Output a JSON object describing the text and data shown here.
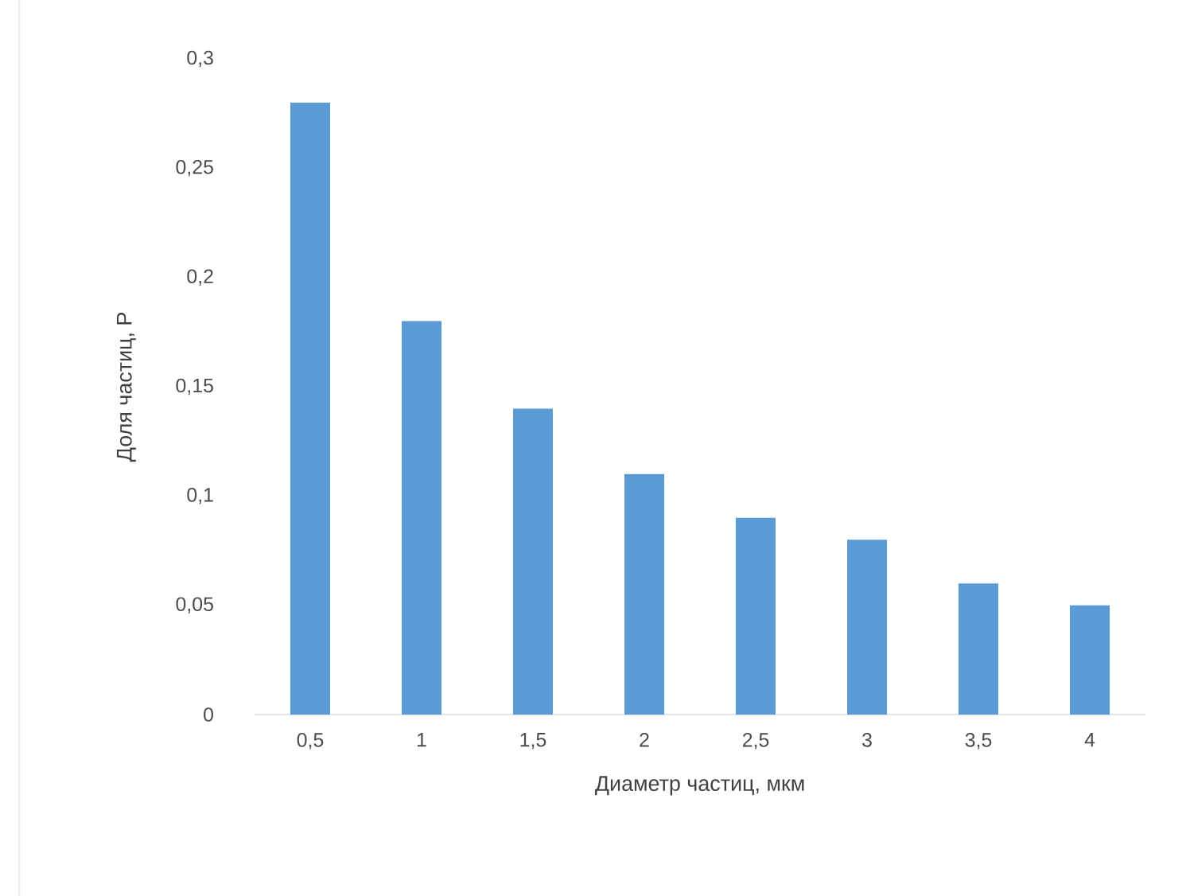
{
  "chart_data": {
    "type": "bar",
    "xlabel": "Диаметр частиц, мкм",
    "ylabel": "Доля частиц, P",
    "categories": [
      "0,5",
      "1",
      "1,5",
      "2",
      "2,5",
      "3",
      "3,5",
      "4"
    ],
    "values": [
      0.28,
      0.18,
      0.14,
      0.11,
      0.09,
      0.08,
      0.06,
      0.05
    ],
    "color": "#5b9bd5",
    "ylim": [
      0,
      0.3
    ],
    "yticks": [
      0,
      {
        "value": 0.05,
        "label": "0,05"
      },
      {
        "value": 0.1,
        "label": "0,1"
      },
      {
        "value": 0.15,
        "label": "0,15"
      },
      {
        "value": 0.2,
        "label": "0,2"
      },
      {
        "value": 0.25,
        "label": "0,25"
      },
      {
        "value": 0.3,
        "label": "0,3"
      }
    ]
  }
}
